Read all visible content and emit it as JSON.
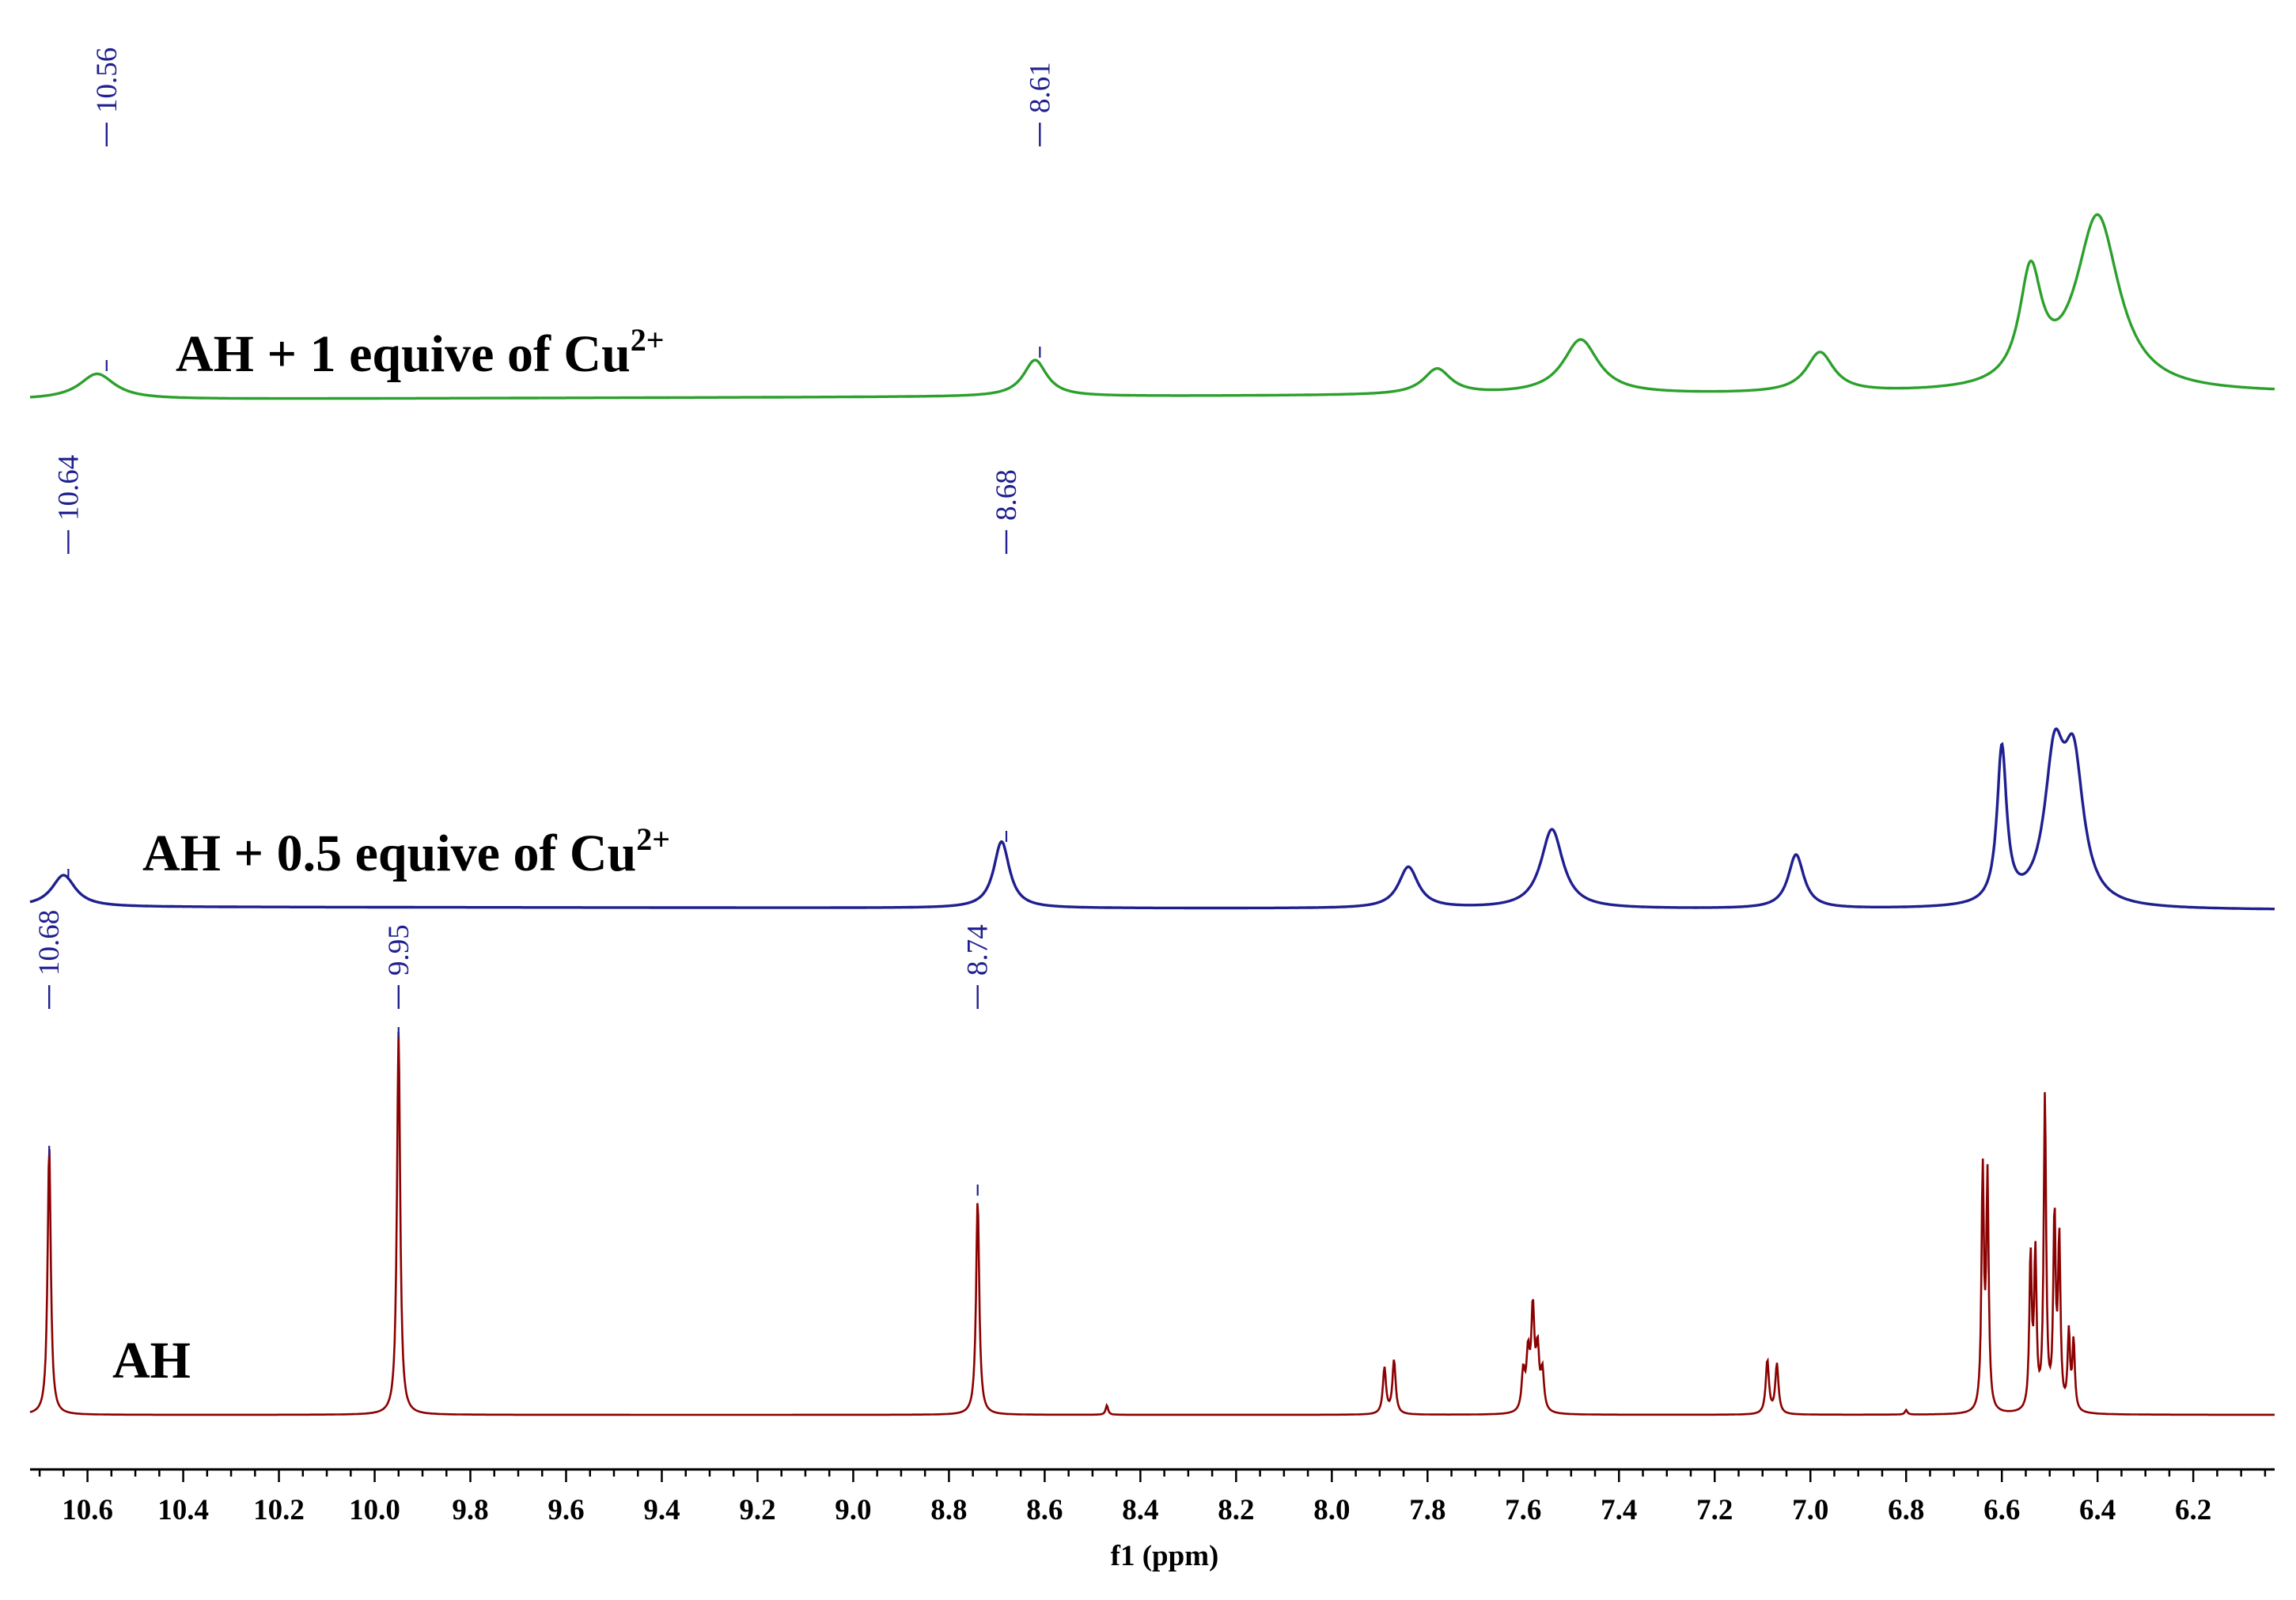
{
  "chart_data": {
    "type": "line",
    "xlabel": "f1 (ppm)",
    "xlim": [
      10.72,
      6.03
    ],
    "x_reversed": true,
    "x_ticks": [
      "10.6",
      "10.4",
      "10.2",
      "10.0",
      "9.8",
      "9.6",
      "9.4",
      "9.2",
      "9.0",
      "8.8",
      "8.6",
      "8.4",
      "8.2",
      "8.0",
      "7.8",
      "7.6",
      "7.4",
      "7.2",
      "7.0",
      "6.8",
      "6.6",
      "6.4",
      "6.2"
    ],
    "grid": false,
    "series": [
      {
        "name": "AH + 1 equive of Cu",
        "name_sup": "2+",
        "color": "#2ca02c",
        "peak_labels": [
          "10.56",
          "8.61"
        ],
        "peaks": [
          {
            "ppm": 10.58,
            "height": 0.07,
            "width": 0.045
          },
          {
            "ppm": 8.62,
            "height": 0.1,
            "width": 0.03
          },
          {
            "ppm": 7.78,
            "height": 0.07,
            "width": 0.035
          },
          {
            "ppm": 7.48,
            "height": 0.15,
            "width": 0.045
          },
          {
            "ppm": 6.98,
            "height": 0.11,
            "width": 0.035
          },
          {
            "ppm": 6.54,
            "height": 0.3,
            "width": 0.028
          },
          {
            "ppm": 6.4,
            "height": 0.48,
            "width": 0.055
          }
        ]
      },
      {
        "name": "AH + 0.5 equive of Cu",
        "name_sup": "2+",
        "color": "#1f1f8f",
        "peak_labels": [
          "10.64",
          "8.68"
        ],
        "peaks": [
          {
            "ppm": 10.65,
            "height": 0.1,
            "width": 0.03
          },
          {
            "ppm": 8.69,
            "height": 0.21,
            "width": 0.02
          },
          {
            "ppm": 7.84,
            "height": 0.13,
            "width": 0.025
          },
          {
            "ppm": 7.54,
            "height": 0.25,
            "width": 0.028
          },
          {
            "ppm": 7.03,
            "height": 0.17,
            "width": 0.02
          },
          {
            "ppm": 6.6,
            "height": 0.49,
            "width": 0.012
          },
          {
            "ppm": 6.49,
            "height": 0.44,
            "width": 0.025
          },
          {
            "ppm": 6.45,
            "height": 0.42,
            "width": 0.025
          }
        ]
      },
      {
        "name": "AH",
        "color": "#8b0000",
        "peak_labels": [
          "10.68",
          "9.95",
          "8.74"
        ],
        "peaks": [
          {
            "ppm": 10.68,
            "height": 0.7,
            "width": 0.004
          },
          {
            "ppm": 9.95,
            "height": 1.0,
            "width": 0.004
          },
          {
            "ppm": 8.74,
            "height": 0.56,
            "width": 0.004
          },
          {
            "ppm": 8.47,
            "height": 0.025,
            "width": 0.003
          },
          {
            "ppm": 7.89,
            "height": 0.12,
            "width": 0.004
          },
          {
            "ppm": 7.87,
            "height": 0.14,
            "width": 0.004
          },
          {
            "ppm": 7.6,
            "height": 0.1,
            "width": 0.004
          },
          {
            "ppm": 7.59,
            "height": 0.14,
            "width": 0.004
          },
          {
            "ppm": 7.58,
            "height": 0.26,
            "width": 0.004
          },
          {
            "ppm": 7.57,
            "height": 0.15,
            "width": 0.004
          },
          {
            "ppm": 7.56,
            "height": 0.1,
            "width": 0.004
          },
          {
            "ppm": 7.09,
            "height": 0.14,
            "width": 0.004
          },
          {
            "ppm": 7.07,
            "height": 0.13,
            "width": 0.004
          },
          {
            "ppm": 6.8,
            "height": 0.012,
            "width": 0.003
          },
          {
            "ppm": 6.64,
            "height": 0.62,
            "width": 0.003
          },
          {
            "ppm": 6.63,
            "height": 0.6,
            "width": 0.003
          },
          {
            "ppm": 6.54,
            "height": 0.4,
            "width": 0.003
          },
          {
            "ppm": 6.53,
            "height": 0.4,
            "width": 0.003
          },
          {
            "ppm": 6.51,
            "height": 0.82,
            "width": 0.003
          },
          {
            "ppm": 6.49,
            "height": 0.5,
            "width": 0.003
          },
          {
            "ppm": 6.48,
            "height": 0.44,
            "width": 0.003
          },
          {
            "ppm": 6.46,
            "height": 0.2,
            "width": 0.003
          },
          {
            "ppm": 6.45,
            "height": 0.18,
            "width": 0.003
          }
        ]
      }
    ]
  }
}
